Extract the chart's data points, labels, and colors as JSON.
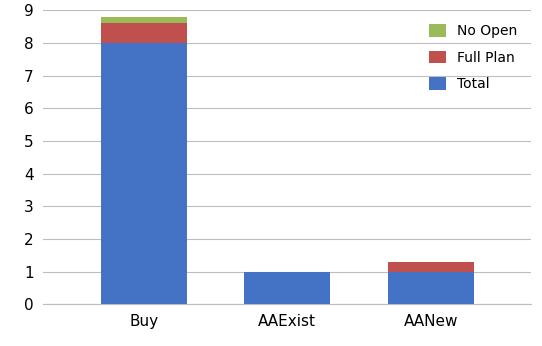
{
  "categories": [
    "Buy",
    "AAExist",
    "AANew"
  ],
  "total": [
    8,
    1,
    1
  ],
  "full_plan": [
    0.6,
    0,
    0.3
  ],
  "no_open": [
    0.2,
    0,
    0
  ],
  "colors": {
    "total": "#4472C4",
    "full_plan": "#C0504D",
    "no_open": "#9BBB59"
  },
  "ylim": [
    0,
    9
  ],
  "yticks": [
    0,
    1,
    2,
    3,
    4,
    5,
    6,
    7,
    8,
    9
  ],
  "bar_width": 0.6,
  "background_color": "#FFFFFF",
  "grid_color": "#BEBEBE",
  "figsize": [
    5.42,
    3.46
  ],
  "dpi": 100
}
